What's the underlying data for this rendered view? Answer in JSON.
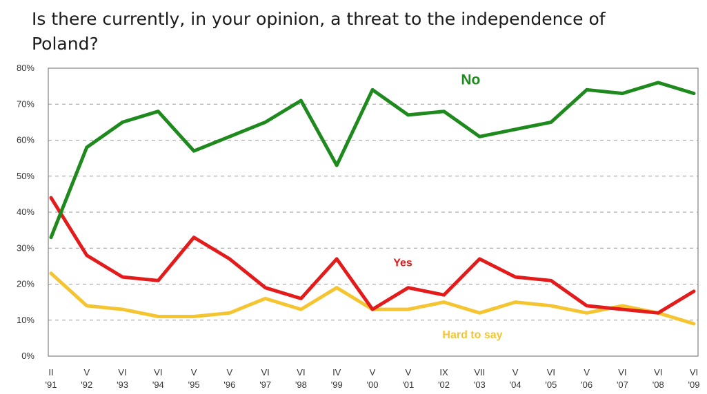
{
  "title": "Is there currently, in your opinion, a threat to the independence of Poland?",
  "chart_data": {
    "type": "line",
    "title": "Is there currently, in your opinion, a threat to the independence of Poland?",
    "ylim": [
      0,
      80
    ],
    "yticks": [
      "0%",
      "10%",
      "20%",
      "30%",
      "40%",
      "50%",
      "60%",
      "70%",
      "80%"
    ],
    "grid": true,
    "x_top": [
      "II",
      "V",
      "VI",
      "VI",
      "V",
      "V",
      "VI",
      "VI",
      "IV",
      "V",
      "V",
      "IX",
      "VII",
      "V",
      "VI",
      "V",
      "VI",
      "VI",
      "VI"
    ],
    "x_bottom": [
      "'91",
      "'92",
      "'93",
      "'94",
      "'95",
      "'96",
      "'97",
      "'98",
      "'99",
      "'00",
      "'01",
      "'02",
      "'03",
      "'04",
      "'05",
      "'06",
      "'07",
      "'08",
      "'09"
    ],
    "series": [
      {
        "name": "No",
        "color": "#1e8a1e",
        "values": [
          33,
          58,
          65,
          68,
          57,
          61,
          65,
          71,
          53,
          74,
          67,
          68,
          61,
          63,
          65,
          74,
          73,
          76,
          73
        ]
      },
      {
        "name": "Yes",
        "color": "#e41b1b",
        "values": [
          44,
          28,
          22,
          21,
          33,
          27,
          19,
          16,
          27,
          13,
          19,
          17,
          27,
          22,
          21,
          14,
          13,
          12,
          18
        ]
      },
      {
        "name": "Hard to say",
        "color": "#f5c431",
        "values": [
          23,
          14,
          13,
          11,
          11,
          12,
          16,
          13,
          19,
          13,
          13,
          15,
          12,
          15,
          14,
          12,
          14,
          12,
          9
        ]
      }
    ]
  }
}
